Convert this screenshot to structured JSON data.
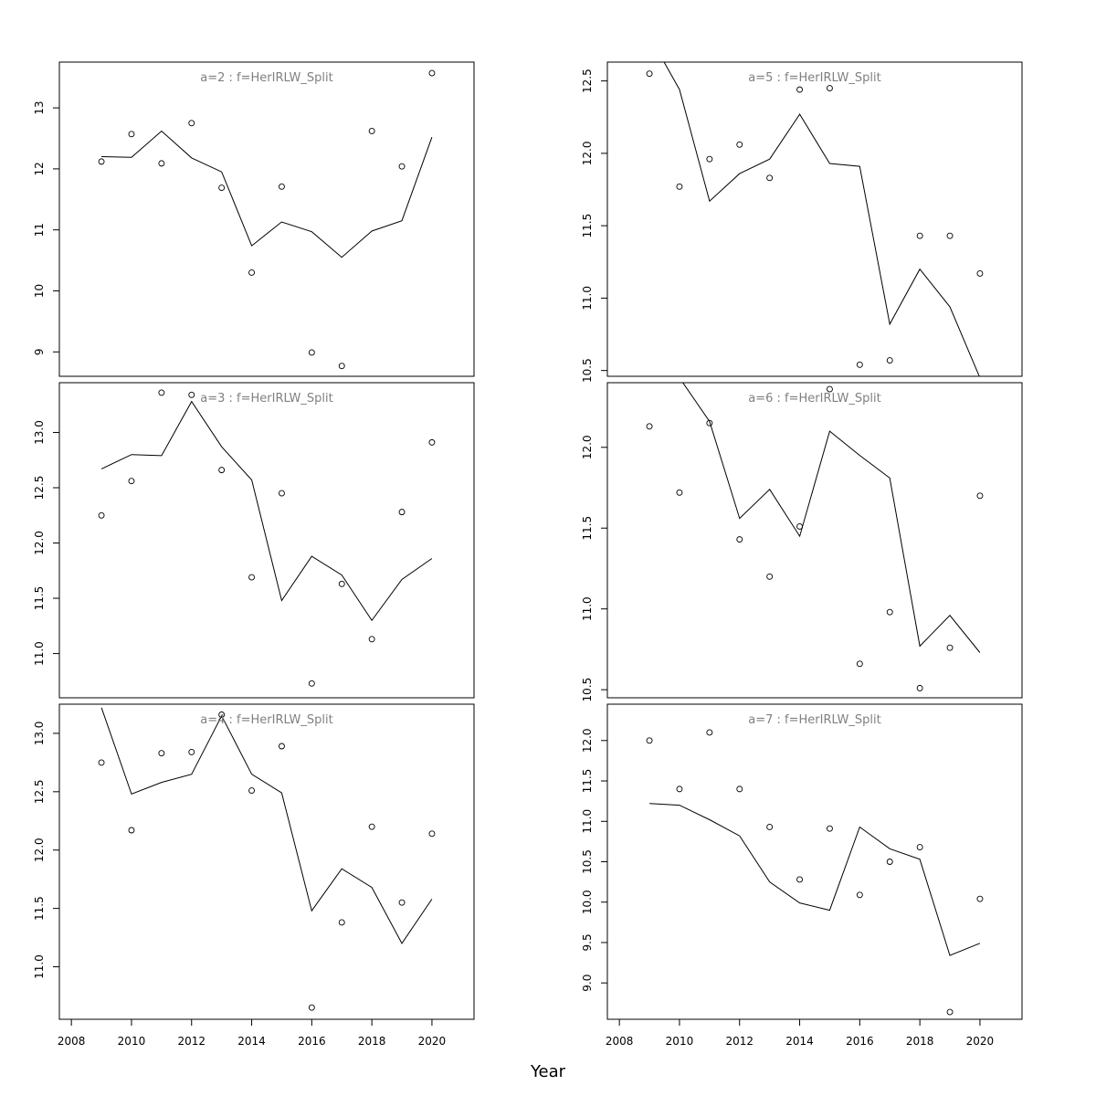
{
  "chart_data": {
    "type": "line",
    "xlabel": "Year",
    "x": [
      2009,
      2010,
      2011,
      2012,
      2013,
      2014,
      2015,
      2016,
      2017,
      2018,
      2019,
      2020
    ],
    "x_ticks": [
      2008,
      2010,
      2012,
      2014,
      2016,
      2018,
      2020
    ],
    "xlim": [
      2007.6,
      2021.4
    ],
    "panels": [
      {
        "title": "a=2  :  f=HerIRLW_Split",
        "ylim": [
          8.6,
          13.75
        ],
        "y_ticks": [
          9,
          10,
          11,
          12,
          13
        ],
        "y_tick_labels": [
          "9",
          "10",
          "11",
          "12",
          "13"
        ],
        "points": [
          12.12,
          12.57,
          12.09,
          12.75,
          11.69,
          10.3,
          11.71,
          8.99,
          8.77,
          12.62,
          12.04,
          13.57
        ],
        "line": [
          12.2,
          12.19,
          12.62,
          12.18,
          11.95,
          10.74,
          11.13,
          10.97,
          10.55,
          10.98,
          11.15,
          12.52
        ]
      },
      {
        "title": "a=3  :  f=HerIRLW_Split",
        "ylim": [
          10.6,
          13.45
        ],
        "y_ticks": [
          11.0,
          11.5,
          12.0,
          12.5,
          13.0
        ],
        "y_tick_labels": [
          "11.0",
          "11.5",
          "12.0",
          "12.5",
          "13.0"
        ],
        "points": [
          12.25,
          12.56,
          13.36,
          13.34,
          12.66,
          11.69,
          12.45,
          10.73,
          11.63,
          11.13,
          12.28,
          12.91
        ],
        "line": [
          12.67,
          12.8,
          12.79,
          13.28,
          12.87,
          12.57,
          11.48,
          11.88,
          11.71,
          11.3,
          11.67,
          11.86
        ]
      },
      {
        "title": "a=4  :  f=HerIRLW_Split",
        "ylim": [
          10.55,
          13.25
        ],
        "y_ticks": [
          11.0,
          11.5,
          12.0,
          12.5,
          13.0
        ],
        "y_tick_labels": [
          "11.0",
          "11.5",
          "12.0",
          "12.5",
          "13.0"
        ],
        "points": [
          12.75,
          12.17,
          12.83,
          12.84,
          13.16,
          12.51,
          12.89,
          10.65,
          11.38,
          12.2,
          11.55,
          12.14
        ],
        "line": [
          13.22,
          12.48,
          12.58,
          12.65,
          13.15,
          12.65,
          12.49,
          11.48,
          11.84,
          11.68,
          11.2,
          11.58
        ]
      },
      {
        "title": "a=5  :  f=HerIRLW_Split",
        "ylim": [
          10.46,
          12.63
        ],
        "y_ticks": [
          10.5,
          11.0,
          11.5,
          12.0,
          12.5
        ],
        "y_tick_labels": [
          "10.5",
          "11.0",
          "11.5",
          "12.0",
          "12.5"
        ],
        "points": [
          12.55,
          11.77,
          11.96,
          12.06,
          11.83,
          12.44,
          12.45,
          10.54,
          10.57,
          11.43,
          11.43,
          11.17
        ],
        "line": [
          12.81,
          12.44,
          11.67,
          11.86,
          11.96,
          12.27,
          11.93,
          11.91,
          10.82,
          11.2,
          10.94,
          10.45
        ]
      },
      {
        "title": "a=6  :  f=HerIRLW_Split",
        "ylim": [
          10.45,
          12.4
        ],
        "y_ticks": [
          10.5,
          11.0,
          11.5,
          12.0
        ],
        "y_tick_labels": [
          "10.5",
          "11.0",
          "11.5",
          "12.0"
        ],
        "points": [
          12.13,
          11.72,
          12.15,
          11.43,
          11.2,
          11.51,
          12.36,
          10.66,
          10.98,
          10.51,
          10.76,
          11.7
        ],
        "line": [
          12.6,
          12.43,
          12.16,
          11.56,
          11.74,
          11.45,
          12.1,
          11.95,
          11.81,
          10.77,
          10.96,
          10.73
        ]
      },
      {
        "title": "a=7  :  f=HerIRLW_Split",
        "ylim": [
          8.55,
          12.45
        ],
        "y_ticks": [
          9.0,
          9.5,
          10.0,
          10.5,
          11.0,
          11.5,
          12.0
        ],
        "y_tick_labels": [
          "9.0",
          "9.5",
          "10.0",
          "10.5",
          "11.0",
          "11.5",
          "12.0"
        ],
        "points": [
          12.0,
          11.4,
          12.1,
          11.4,
          10.93,
          10.28,
          10.91,
          10.09,
          10.5,
          10.68,
          8.64,
          10.04
        ],
        "line": [
          11.22,
          11.2,
          11.02,
          10.82,
          10.25,
          9.99,
          9.9,
          10.93,
          10.66,
          10.53,
          9.34,
          9.49
        ]
      }
    ]
  }
}
